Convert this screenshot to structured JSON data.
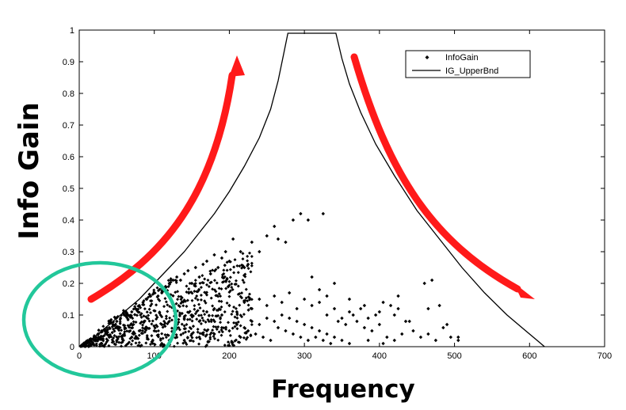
{
  "chart_data": {
    "type": "scatter",
    "xlabel": "Frequency",
    "ylabel": "Info Gain",
    "xlim": [
      0,
      700
    ],
    "ylim": [
      0,
      1
    ],
    "x_ticks": [
      "0",
      "100",
      "200",
      "300",
      "400",
      "500",
      "600",
      "700"
    ],
    "y_ticks": [
      "0",
      "0.1",
      "0.2",
      "0.3",
      "0.4",
      "0.5",
      "0.6",
      "0.7",
      "0.8",
      "0.9",
      "1"
    ],
    "grid": false,
    "legend_position": "top-right",
    "series": [
      {
        "name": "InfoGain",
        "kind": "points",
        "marker": "diamond",
        "color": "#000000",
        "points": [
          [
            5,
            0.005
          ],
          [
            10,
            0.01
          ],
          [
            15,
            0.02
          ],
          [
            20,
            0.03
          ],
          [
            25,
            0.04
          ],
          [
            30,
            0.05
          ],
          [
            35,
            0.05
          ],
          [
            40,
            0.06
          ],
          [
            45,
            0.07
          ],
          [
            50,
            0.08
          ],
          [
            55,
            0.09
          ],
          [
            60,
            0.1
          ],
          [
            65,
            0.1
          ],
          [
            70,
            0.11
          ],
          [
            75,
            0.12
          ],
          [
            80,
            0.13
          ],
          [
            85,
            0.14
          ],
          [
            90,
            0.15
          ],
          [
            95,
            0.16
          ],
          [
            100,
            0.17
          ],
          [
            105,
            0.16
          ],
          [
            110,
            0.17
          ],
          [
            115,
            0.19
          ],
          [
            120,
            0.2
          ],
          [
            125,
            0.21
          ],
          [
            130,
            0.22
          ],
          [
            135,
            0.21
          ],
          [
            140,
            0.23
          ],
          [
            145,
            0.24
          ],
          [
            150,
            0.2
          ],
          [
            155,
            0.25
          ],
          [
            160,
            0.22
          ],
          [
            165,
            0.26
          ],
          [
            170,
            0.27
          ],
          [
            175,
            0.23
          ],
          [
            180,
            0.29
          ],
          [
            185,
            0.25
          ],
          [
            190,
            0.28
          ],
          [
            195,
            0.3
          ],
          [
            200,
            0.27
          ],
          [
            205,
            0.34
          ],
          [
            215,
            0.3
          ],
          [
            220,
            0.25
          ],
          [
            225,
            0.26
          ],
          [
            230,
            0.33
          ],
          [
            240,
            0.3
          ],
          [
            250,
            0.35
          ],
          [
            260,
            0.38
          ],
          [
            265,
            0.34
          ],
          [
            275,
            0.33
          ],
          [
            285,
            0.4
          ],
          [
            295,
            0.42
          ],
          [
            305,
            0.4
          ],
          [
            325,
            0.42
          ],
          [
            20,
            0.02
          ],
          [
            30,
            0.01
          ],
          [
            40,
            0.03
          ],
          [
            50,
            0.02
          ],
          [
            60,
            0.04
          ],
          [
            70,
            0.03
          ],
          [
            80,
            0.05
          ],
          [
            90,
            0.06
          ],
          [
            100,
            0.05
          ],
          [
            110,
            0.07
          ],
          [
            120,
            0.08
          ],
          [
            130,
            0.06
          ],
          [
            140,
            0.09
          ],
          [
            150,
            0.1
          ],
          [
            160,
            0.08
          ],
          [
            170,
            0.11
          ],
          [
            180,
            0.12
          ],
          [
            190,
            0.1
          ],
          [
            200,
            0.13
          ],
          [
            210,
            0.11
          ],
          [
            220,
            0.14
          ],
          [
            230,
            0.12
          ],
          [
            240,
            0.15
          ],
          [
            250,
            0.13
          ],
          [
            260,
            0.16
          ],
          [
            270,
            0.14
          ],
          [
            280,
            0.17
          ],
          [
            290,
            0.12
          ],
          [
            300,
            0.15
          ],
          [
            310,
            0.13
          ],
          [
            320,
            0.14
          ],
          [
            330,
            0.1
          ],
          [
            340,
            0.12
          ],
          [
            350,
            0.09
          ],
          [
            360,
            0.11
          ],
          [
            370,
            0.08
          ],
          [
            380,
            0.06
          ],
          [
            390,
            0.05
          ],
          [
            400,
            0.07
          ],
          [
            410,
            0.03
          ],
          [
            420,
            0.02
          ],
          [
            430,
            0.04
          ],
          [
            110,
            0.01
          ],
          [
            120,
            0.02
          ],
          [
            130,
            0.03
          ],
          [
            140,
            0.02
          ],
          [
            150,
            0.04
          ],
          [
            160,
            0.03
          ],
          [
            170,
            0.05
          ],
          [
            180,
            0.04
          ],
          [
            190,
            0.06
          ],
          [
            200,
            0.05
          ],
          [
            210,
            0.07
          ],
          [
            220,
            0.06
          ],
          [
            230,
            0.08
          ],
          [
            240,
            0.07
          ],
          [
            250,
            0.09
          ],
          [
            260,
            0.08
          ],
          [
            270,
            0.1
          ],
          [
            280,
            0.09
          ],
          [
            290,
            0.08
          ],
          [
            300,
            0.07
          ],
          [
            310,
            0.06
          ],
          [
            320,
            0.05
          ],
          [
            330,
            0.04
          ],
          [
            340,
            0.03
          ],
          [
            350,
            0.02
          ],
          [
            360,
            0.01
          ],
          [
            225,
            0.05
          ],
          [
            235,
            0.04
          ],
          [
            245,
            0.03
          ],
          [
            255,
            0.02
          ],
          [
            265,
            0.06
          ],
          [
            275,
            0.05
          ],
          [
            285,
            0.04
          ],
          [
            295,
            0.03
          ],
          [
            305,
            0.02
          ],
          [
            315,
            0.03
          ],
          [
            325,
            0.02
          ],
          [
            335,
            0.01
          ],
          [
            345,
            0.08
          ],
          [
            355,
            0.07
          ],
          [
            365,
            0.1
          ],
          [
            375,
            0.12
          ],
          [
            385,
            0.09
          ],
          [
            395,
            0.1
          ],
          [
            405,
            0.14
          ],
          [
            415,
            0.13
          ],
          [
            425,
            0.12
          ],
          [
            435,
            0.08
          ],
          [
            445,
            0.05
          ],
          [
            455,
            0.03
          ],
          [
            465,
            0.04
          ],
          [
            475,
            0.02
          ],
          [
            485,
            0.06
          ],
          [
            495,
            0.03
          ],
          [
            505,
            0.02
          ],
          [
            310,
            0.22
          ],
          [
            320,
            0.18
          ],
          [
            330,
            0.16
          ],
          [
            340,
            0.2
          ],
          [
            360,
            0.15
          ],
          [
            380,
            0.13
          ],
          [
            400,
            0.11
          ],
          [
            420,
            0.1
          ],
          [
            440,
            0.08
          ],
          [
            460,
            0.2
          ],
          [
            470,
            0.21
          ],
          [
            480,
            0.13
          ],
          [
            490,
            0.07
          ],
          [
            505,
            0.03
          ],
          [
            465,
            0.12
          ],
          [
            425,
            0.16
          ],
          [
            385,
            0.02
          ],
          [
            405,
            0.01
          ]
        ]
      },
      {
        "name": "IG_UpperBnd",
        "kind": "line",
        "color": "#000000",
        "points": [
          [
            0,
            0
          ],
          [
            20,
            0.03
          ],
          [
            40,
            0.07
          ],
          [
            60,
            0.11
          ],
          [
            80,
            0.15
          ],
          [
            100,
            0.2
          ],
          [
            120,
            0.25
          ],
          [
            140,
            0.3
          ],
          [
            160,
            0.36
          ],
          [
            180,
            0.42
          ],
          [
            200,
            0.49
          ],
          [
            220,
            0.57
          ],
          [
            240,
            0.66
          ],
          [
            255,
            0.75
          ],
          [
            265,
            0.84
          ],
          [
            272,
            0.92
          ],
          [
            278,
            0.99
          ],
          [
            342,
            0.99
          ],
          [
            350,
            0.91
          ],
          [
            360,
            0.83
          ],
          [
            375,
            0.74
          ],
          [
            395,
            0.64
          ],
          [
            420,
            0.54
          ],
          [
            450,
            0.43
          ],
          [
            480,
            0.34
          ],
          [
            510,
            0.25
          ],
          [
            540,
            0.17
          ],
          [
            570,
            0.1
          ],
          [
            595,
            0.05
          ],
          [
            610,
            0.02
          ],
          [
            620,
            0
          ]
        ]
      }
    ]
  },
  "annotations": {
    "arrow_color": "#ff1a1a",
    "circle_color": "#22c79a"
  }
}
